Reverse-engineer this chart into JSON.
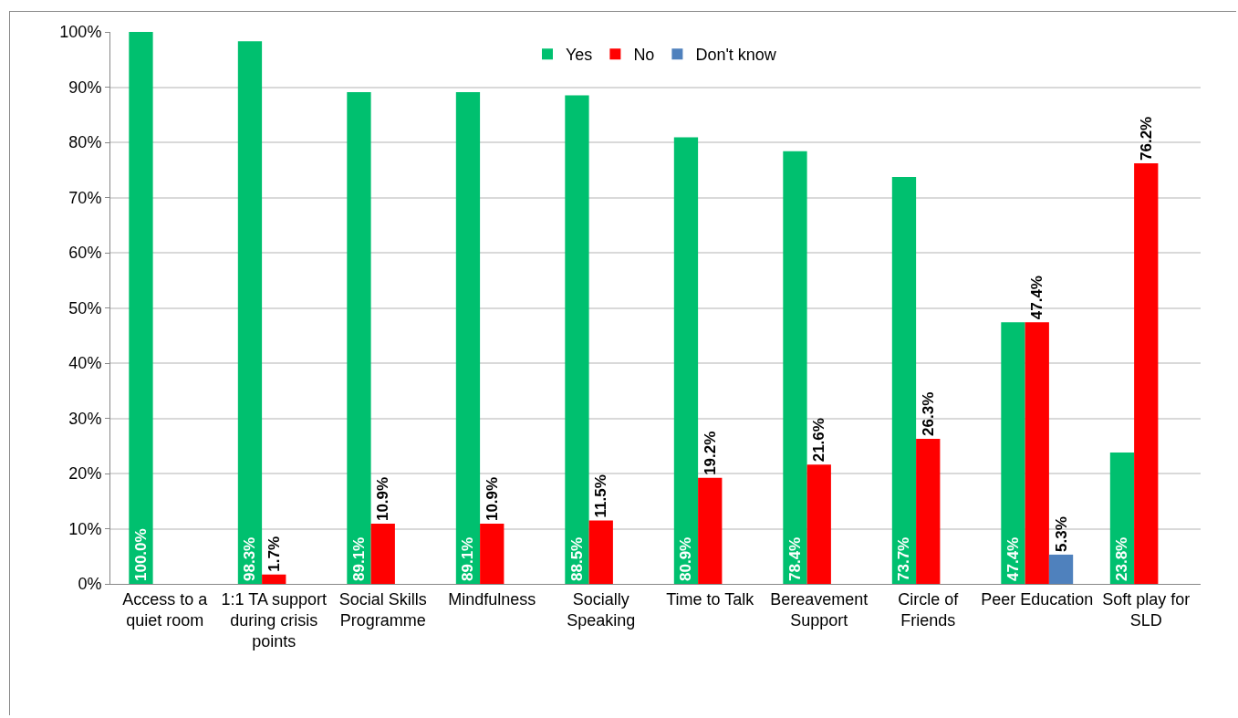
{
  "chart_data": {
    "type": "bar",
    "categories": [
      "Access to a quiet room",
      "1:1 TA support during crisis points",
      "Social Skills Programme",
      "Mindfulness",
      "Socially Speaking",
      "Time to Talk",
      "Bereavement Support",
      "Circle of Friends",
      "Peer Education",
      "Soft play for SLD"
    ],
    "series": [
      {
        "name": "Yes",
        "color": "#00c06f",
        "values": [
          100.0,
          98.3,
          89.1,
          89.1,
          88.5,
          80.9,
          78.4,
          73.7,
          47.4,
          23.8
        ],
        "value_labels": [
          "100.0%",
          "98.3%",
          "89.1%",
          "89.1%",
          "88.5%",
          "80.9%",
          "78.4%",
          "73.7%",
          "47.4%",
          "23.8%"
        ]
      },
      {
        "name": "No",
        "color": "#ff0000",
        "values": [
          null,
          1.7,
          10.9,
          10.9,
          11.5,
          19.2,
          21.6,
          26.3,
          47.4,
          76.2
        ],
        "value_labels": [
          null,
          "1.7%",
          "10.9%",
          "10.9%",
          "11.5%",
          "19.2%",
          "21.6%",
          "26.3%",
          "47.4%",
          "76.2%"
        ]
      },
      {
        "name": "Don't know",
        "color": "#4f81bd",
        "values": [
          null,
          null,
          null,
          null,
          null,
          null,
          null,
          null,
          5.3,
          null
        ],
        "value_labels": [
          null,
          null,
          null,
          null,
          null,
          null,
          null,
          null,
          "5.3%",
          null
        ]
      }
    ],
    "ylim": [
      0,
      100
    ],
    "yticks": [
      {
        "value": 0,
        "label": "0%"
      },
      {
        "value": 10,
        "label": "10%"
      },
      {
        "value": 20,
        "label": "20%"
      },
      {
        "value": 30,
        "label": "30%"
      },
      {
        "value": 40,
        "label": "40%"
      },
      {
        "value": 50,
        "label": "50%"
      },
      {
        "value": 60,
        "label": "60%"
      },
      {
        "value": 70,
        "label": "70%"
      },
      {
        "value": 80,
        "label": "80%"
      },
      {
        "value": 90,
        "label": "90%"
      },
      {
        "value": 100,
        "label": "100%"
      }
    ],
    "grid": "y",
    "legend": "top"
  }
}
